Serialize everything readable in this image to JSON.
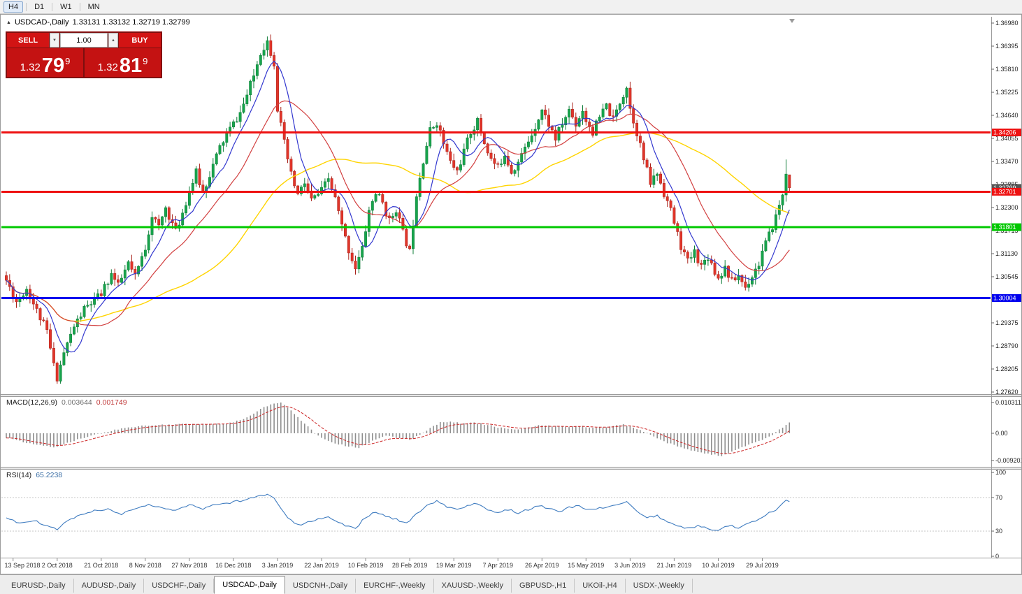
{
  "window": {
    "toolbar": {
      "timeframes": [
        "H4",
        "D1",
        "W1",
        "MN"
      ],
      "active_timeframe": "H4"
    },
    "tabs": [
      {
        "label": "EURUSD-,Daily",
        "active": false
      },
      {
        "label": "AUDUSD-,Daily",
        "active": false
      },
      {
        "label": "USDCHF-,Daily",
        "active": false
      },
      {
        "label": "USDCAD-,Daily",
        "active": true
      },
      {
        "label": "USDCNH-,Daily",
        "active": false
      },
      {
        "label": "EURCHF-,Weekly",
        "active": false
      },
      {
        "label": "XAUUSD-,Weekly",
        "active": false
      },
      {
        "label": "GBPUSD-,H1",
        "active": false
      },
      {
        "label": "UKOil-,H4",
        "active": false
      },
      {
        "label": "USDX-,Weekly",
        "active": false
      }
    ]
  },
  "chart": {
    "title": {
      "symbol": "USDCAD-,Daily",
      "ohlc": "1.33131 1.33132 1.32719 1.32799"
    },
    "trade_panel": {
      "sell_label": "SELL",
      "buy_label": "BUY",
      "volume": "1.00",
      "sell_price": {
        "prefix": "1.32",
        "big": "79",
        "sup": "9"
      },
      "buy_price": {
        "prefix": "1.32",
        "big": "81",
        "sup": "9"
      }
    },
    "price_axis_labels": [
      "1.36980",
      "1.36395",
      "1.35810",
      "1.35225",
      "1.34640",
      "1.34055",
      "1.33470",
      "1.32885",
      "1.32300",
      "1.31715",
      "1.31130",
      "1.30545",
      "1.29960",
      "1.29375",
      "1.28790",
      "1.28205",
      "1.27620"
    ],
    "price_tags": [
      {
        "text": "1.32799",
        "price": 1.32799,
        "color": "#555555",
        "kind": "current-price"
      },
      {
        "text": "1.34206",
        "price": 1.34206,
        "color": "#ee1111",
        "kind": "resistance"
      },
      {
        "text": "1.32701",
        "price": 1.32701,
        "color": "#ee1111",
        "kind": "resistance"
      },
      {
        "text": "1.31801",
        "price": 1.31801,
        "color": "#00c800",
        "kind": "support"
      },
      {
        "text": "1.30004",
        "price": 1.30004,
        "color": "#0000ee",
        "kind": "support"
      }
    ],
    "hlines": [
      {
        "price": 1.34206,
        "color": "#ee1111",
        "width": 3
      },
      {
        "price": 1.32701,
        "color": "#ee1111",
        "width": 3
      },
      {
        "price": 1.31801,
        "color": "#00c800",
        "width": 3
      },
      {
        "price": 1.30004,
        "color": "#0000ee",
        "width": 3
      }
    ],
    "date_axis": [
      "13 Sep 2018",
      "2 Oct 2018",
      "21 Oct 2018",
      "8 Nov 2018",
      "27 Nov 2018",
      "16 Dec 2018",
      "3 Jan 2019",
      "22 Jan 2019",
      "10 Feb 2019",
      "28 Feb 2019",
      "19 Mar 2019",
      "7 Apr 2019",
      "26 Apr 2019",
      "15 May 2019",
      "3 Jun 2019",
      "21 Jun 2019",
      "10 Jul 2019",
      "29 Jul 2019"
    ]
  },
  "chart_data": {
    "type": "candlestick",
    "symbol": "USDCAD",
    "timeframe": "Daily",
    "bars": 232,
    "seed": 11,
    "noise": 0.0011,
    "wick": 0.0016,
    "colors": {
      "up": "#17a44c",
      "up_stroke": "#0d7c37",
      "down": "#e1352a",
      "down_stroke": "#a9221a",
      "ma_fast": "#3338cf",
      "ma_mid": "#d24040",
      "ma_slow": "#ffd400",
      "macd_hist": "#8f8f8f",
      "macd_signal": "#cc2222",
      "rsi": "#3f7cc0"
    },
    "ma_periods": {
      "fast": 8,
      "mid": 21,
      "slow": 55
    },
    "price_anchors": [
      [
        0,
        1.3045
      ],
      [
        3,
        1.2992
      ],
      [
        6,
        1.3025
      ],
      [
        9,
        1.2968
      ],
      [
        12,
        1.2915
      ],
      [
        14,
        1.2828
      ],
      [
        15,
        1.28
      ],
      [
        17,
        1.2862
      ],
      [
        20,
        1.2928
      ],
      [
        23,
        1.2972
      ],
      [
        28,
        1.301
      ],
      [
        31,
        1.3062
      ],
      [
        33,
        1.303
      ],
      [
        36,
        1.3088
      ],
      [
        38,
        1.3052
      ],
      [
        41,
        1.3128
      ],
      [
        43,
        1.3212
      ],
      [
        45,
        1.3178
      ],
      [
        47,
        1.323
      ],
      [
        50,
        1.3168
      ],
      [
        52,
        1.3218
      ],
      [
        54,
        1.3272
      ],
      [
        56,
        1.3318
      ],
      [
        58,
        1.3268
      ],
      [
        60,
        1.3315
      ],
      [
        63,
        1.3382
      ],
      [
        65,
        1.3415
      ],
      [
        67,
        1.3442
      ],
      [
        69,
        1.347
      ],
      [
        71,
        1.3515
      ],
      [
        73,
        1.3565
      ],
      [
        75,
        1.3625
      ],
      [
        77,
        1.3652
      ],
      [
        79,
        1.3598
      ],
      [
        80,
        1.3482
      ],
      [
        82,
        1.3392
      ],
      [
        84,
        1.3312
      ],
      [
        86,
        1.3262
      ],
      [
        88,
        1.3292
      ],
      [
        90,
        1.3248
      ],
      [
        93,
        1.3272
      ],
      [
        95,
        1.3302
      ],
      [
        97,
        1.3252
      ],
      [
        99,
        1.3182
      ],
      [
        101,
        1.3122
      ],
      [
        103,
        1.3078
      ],
      [
        105,
        1.3125
      ],
      [
        107,
        1.3222
      ],
      [
        109,
        1.3268
      ],
      [
        111,
        1.3242
      ],
      [
        113,
        1.3195
      ],
      [
        115,
        1.3228
      ],
      [
        117,
        1.3165
      ],
      [
        119,
        1.3118
      ],
      [
        121,
        1.3268
      ],
      [
        123,
        1.3352
      ],
      [
        125,
        1.3425
      ],
      [
        127,
        1.3448
      ],
      [
        129,
        1.3392
      ],
      [
        131,
        1.3345
      ],
      [
        133,
        1.3322
      ],
      [
        135,
        1.3372
      ],
      [
        137,
        1.3422
      ],
      [
        139,
        1.3448
      ],
      [
        141,
        1.3395
      ],
      [
        143,
        1.3352
      ],
      [
        145,
        1.333
      ],
      [
        147,
        1.3368
      ],
      [
        149,
        1.3322
      ],
      [
        151,
        1.3345
      ],
      [
        153,
        1.338
      ],
      [
        155,
        1.3418
      ],
      [
        157,
        1.3458
      ],
      [
        158,
        1.3478
      ],
      [
        160,
        1.3442
      ],
      [
        162,
        1.3405
      ],
      [
        164,
        1.3442
      ],
      [
        166,
        1.3478
      ],
      [
        168,
        1.3442
      ],
      [
        170,
        1.3478
      ],
      [
        171,
        1.3452
      ],
      [
        173,
        1.3422
      ],
      [
        175,
        1.3458
      ],
      [
        177,
        1.3488
      ],
      [
        179,
        1.3452
      ],
      [
        181,
        1.3498
      ],
      [
        183,
        1.3538
      ],
      [
        184,
        1.3482
      ],
      [
        186,
        1.3422
      ],
      [
        188,
        1.3352
      ],
      [
        190,
        1.3292
      ],
      [
        192,
        1.3318
      ],
      [
        194,
        1.3268
      ],
      [
        196,
        1.3222
      ],
      [
        197,
        1.3192
      ],
      [
        199,
        1.3132
      ],
      [
        201,
        1.3092
      ],
      [
        203,
        1.3118
      ],
      [
        205,
        1.3082
      ],
      [
        207,
        1.3108
      ],
      [
        209,
        1.3068
      ],
      [
        210,
        1.3052
      ],
      [
        212,
        1.3078
      ],
      [
        214,
        1.3042
      ],
      [
        216,
        1.3058
      ],
      [
        218,
        1.3028
      ],
      [
        220,
        1.3058
      ],
      [
        222,
        1.3088
      ],
      [
        223,
        1.3118
      ],
      [
        225,
        1.3158
      ],
      [
        227,
        1.3208
      ],
      [
        229,
        1.3262
      ],
      [
        230,
        1.3315
      ],
      [
        231,
        1.32799
      ]
    ],
    "forced_bars": {
      "15": {
        "l": 1.2783
      },
      "77": {
        "h": 1.3664
      },
      "230": {
        "h": 1.3352
      },
      "231": {
        "o": 1.33131,
        "h": 1.33132,
        "l": 1.32719,
        "c": 1.32799
      }
    },
    "macd": {
      "label": "MACD(12,26,9)",
      "value_main": "0.003644",
      "value_signal": "0.001749",
      "axis_labels": [
        "0.010311",
        "0.00",
        "-0.009201"
      ],
      "anchors": [
        [
          0,
          -0.0015
        ],
        [
          6,
          -0.0032
        ],
        [
          12,
          -0.0044
        ],
        [
          15,
          -0.0046
        ],
        [
          20,
          -0.0025
        ],
        [
          26,
          -0.0005
        ],
        [
          32,
          0.0012
        ],
        [
          38,
          0.0022
        ],
        [
          44,
          0.0028
        ],
        [
          50,
          0.003
        ],
        [
          56,
          0.003
        ],
        [
          62,
          0.0031
        ],
        [
          67,
          0.0036
        ],
        [
          72,
          0.0058
        ],
        [
          76,
          0.0088
        ],
        [
          79,
          0.0101
        ],
        [
          81,
          0.0103
        ],
        [
          84,
          0.0078
        ],
        [
          88,
          0.0032
        ],
        [
          92,
          -0.0008
        ],
        [
          96,
          -0.003
        ],
        [
          100,
          -0.0042
        ],
        [
          104,
          -0.0048
        ],
        [
          108,
          -0.0026
        ],
        [
          112,
          -0.0009
        ],
        [
          116,
          -0.0016
        ],
        [
          119,
          -0.0021
        ],
        [
          122,
          -0.0005
        ],
        [
          125,
          0.0018
        ],
        [
          128,
          0.0036
        ],
        [
          131,
          0.004
        ],
        [
          134,
          0.0033
        ],
        [
          138,
          0.0035
        ],
        [
          142,
          0.0028
        ],
        [
          146,
          0.0018
        ],
        [
          150,
          0.0012
        ],
        [
          154,
          0.0018
        ],
        [
          158,
          0.0028
        ],
        [
          162,
          0.0023
        ],
        [
          166,
          0.0021
        ],
        [
          170,
          0.0023
        ],
        [
          174,
          0.0019
        ],
        [
          178,
          0.0022
        ],
        [
          182,
          0.0029
        ],
        [
          185,
          0.002
        ],
        [
          188,
          0.0005
        ],
        [
          191,
          -0.0012
        ],
        [
          194,
          -0.0028
        ],
        [
          197,
          -0.004
        ],
        [
          200,
          -0.0052
        ],
        [
          203,
          -0.006
        ],
        [
          206,
          -0.0067
        ],
        [
          209,
          -0.0073
        ],
        [
          211,
          -0.0075
        ],
        [
          214,
          -0.0062
        ],
        [
          217,
          -0.0048
        ],
        [
          220,
          -0.0035
        ],
        [
          223,
          -0.0022
        ],
        [
          226,
          -0.0006
        ],
        [
          228,
          0.0012
        ],
        [
          230,
          0.0028
        ],
        [
          231,
          0.003644
        ]
      ]
    },
    "rsi": {
      "label": "RSI(14)",
      "value": "65.2238",
      "axis_labels": [
        "100",
        "70",
        "30",
        "0"
      ],
      "levels": [
        70,
        30
      ],
      "anchors": [
        [
          0,
          46
        ],
        [
          4,
          39
        ],
        [
          8,
          43
        ],
        [
          12,
          36
        ],
        [
          15,
          32
        ],
        [
          18,
          42
        ],
        [
          22,
          50
        ],
        [
          26,
          54
        ],
        [
          30,
          56
        ],
        [
          34,
          50
        ],
        [
          38,
          57
        ],
        [
          42,
          62
        ],
        [
          46,
          58
        ],
        [
          50,
          54
        ],
        [
          54,
          61
        ],
        [
          58,
          57
        ],
        [
          62,
          62
        ],
        [
          66,
          64
        ],
        [
          70,
          67
        ],
        [
          74,
          71
        ],
        [
          77,
          74
        ],
        [
          79,
          70
        ],
        [
          81,
          58
        ],
        [
          83,
          47
        ],
        [
          86,
          37
        ],
        [
          89,
          41
        ],
        [
          92,
          44
        ],
        [
          95,
          47
        ],
        [
          98,
          40
        ],
        [
          101,
          35
        ],
        [
          103,
          33
        ],
        [
          106,
          47
        ],
        [
          109,
          53
        ],
        [
          112,
          47
        ],
        [
          115,
          44
        ],
        [
          118,
          39
        ],
        [
          121,
          50
        ],
        [
          124,
          60
        ],
        [
          127,
          66
        ],
        [
          130,
          59
        ],
        [
          133,
          55
        ],
        [
          136,
          60
        ],
        [
          139,
          63
        ],
        [
          142,
          56
        ],
        [
          145,
          52
        ],
        [
          148,
          56
        ],
        [
          151,
          52
        ],
        [
          154,
          56
        ],
        [
          157,
          61
        ],
        [
          160,
          57
        ],
        [
          163,
          53
        ],
        [
          166,
          58
        ],
        [
          169,
          60
        ],
        [
          172,
          55
        ],
        [
          175,
          57
        ],
        [
          178,
          60
        ],
        [
          181,
          62
        ],
        [
          183,
          66
        ],
        [
          186,
          54
        ],
        [
          189,
          46
        ],
        [
          192,
          48
        ],
        [
          195,
          41
        ],
        [
          198,
          36
        ],
        [
          201,
          33
        ],
        [
          204,
          36
        ],
        [
          207,
          33
        ],
        [
          210,
          31
        ],
        [
          213,
          37
        ],
        [
          216,
          34
        ],
        [
          219,
          39
        ],
        [
          222,
          45
        ],
        [
          225,
          52
        ],
        [
          228,
          58
        ],
        [
          230,
          67
        ],
        [
          231,
          65.22
        ]
      ]
    }
  }
}
